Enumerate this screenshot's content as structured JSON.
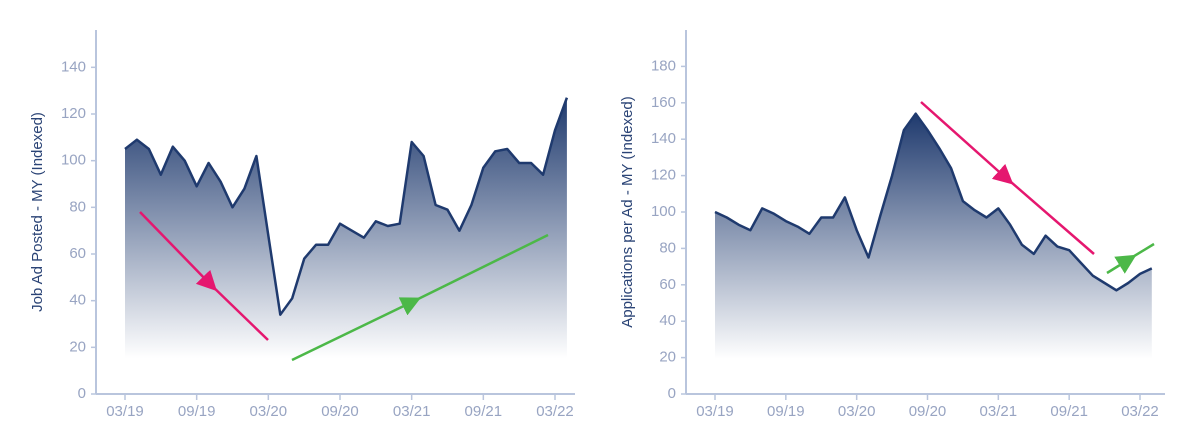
{
  "chart_data": [
    {
      "type": "area",
      "y_label": "Job Ad Posted - MY (Indexed)",
      "color": "#1f3a6e",
      "categories": [
        "03/19",
        null,
        null,
        null,
        null,
        null,
        "09/19",
        null,
        null,
        null,
        null,
        null,
        "03/20",
        null,
        null,
        null,
        null,
        null,
        "09/20",
        null,
        null,
        null,
        null,
        null,
        "03/21",
        null,
        null,
        null,
        null,
        null,
        "09/21",
        null,
        null,
        null,
        null,
        null,
        "03/22",
        null
      ],
      "values": [
        105,
        109,
        105,
        94,
        106,
        100,
        89,
        99,
        91,
        80,
        88,
        102,
        68,
        34,
        41,
        58,
        64,
        64,
        73,
        70,
        67,
        74,
        72,
        73,
        108,
        102,
        81,
        79,
        70,
        81,
        97,
        104,
        105,
        99,
        99,
        94,
        113,
        127
      ],
      "ylim": [
        0,
        156
      ],
      "yticks": [
        0,
        20,
        40,
        60,
        80,
        100,
        120,
        140
      ]
    },
    {
      "type": "area",
      "y_label": "Applications per Ad - MY (Indexed)",
      "color": "#1f3a6e",
      "categories": [
        "03/19",
        null,
        null,
        null,
        null,
        null,
        "09/19",
        null,
        null,
        null,
        null,
        null,
        "03/20",
        null,
        null,
        null,
        null,
        null,
        "09/20",
        null,
        null,
        null,
        null,
        null,
        "03/21",
        null,
        null,
        null,
        null,
        null,
        "09/21",
        null,
        null,
        null,
        null,
        null,
        "03/22",
        null
      ],
      "values": [
        100,
        97,
        93,
        90,
        102,
        99,
        95,
        92,
        88,
        97,
        97,
        108,
        90,
        75,
        98,
        120,
        145,
        154,
        145,
        135,
        124,
        106,
        101,
        97,
        102,
        93,
        82,
        77,
        87,
        81,
        79,
        72,
        65,
        61,
        57,
        61,
        66,
        69
      ],
      "ylim": [
        0,
        200
      ],
      "yticks": [
        0,
        20,
        40,
        60,
        80,
        100,
        120,
        140,
        160,
        180
      ]
    }
  ]
}
